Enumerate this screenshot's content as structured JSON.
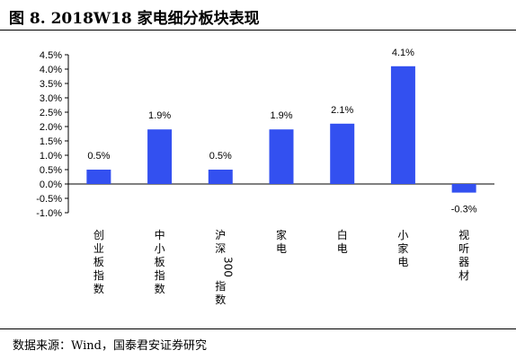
{
  "title": "图 8. 2018W18 家电细分板块表现",
  "source": "数据来源：Wind，国泰君安证券研究",
  "colors": {
    "bar": "#3350F0"
  },
  "chart_data": {
    "type": "bar",
    "categories": [
      "创业板指数",
      "中小板指数",
      "沪深300指数",
      "家电",
      "白电",
      "小家电",
      "视听器材"
    ],
    "values": [
      0.5,
      1.9,
      0.5,
      1.9,
      2.1,
      4.1,
      -0.3
    ],
    "data_labels": [
      "0.5%",
      "1.9%",
      "0.5%",
      "1.9%",
      "2.1%",
      "4.1%",
      "-0.3%"
    ],
    "y_ticks": [
      4.5,
      4.0,
      3.5,
      3.0,
      2.5,
      2.0,
      1.5,
      1.0,
      0.5,
      0.0,
      -0.5,
      -1.0
    ],
    "y_tick_labels": [
      "4.5%",
      "4.0%",
      "3.5%",
      "3.0%",
      "2.5%",
      "2.0%",
      "1.5%",
      "1.0%",
      "0.5%",
      "0.0%",
      "-0.5%",
      "-1.0%"
    ],
    "ylim": [
      -1.0,
      4.5
    ],
    "grid": false,
    "legend": false
  }
}
